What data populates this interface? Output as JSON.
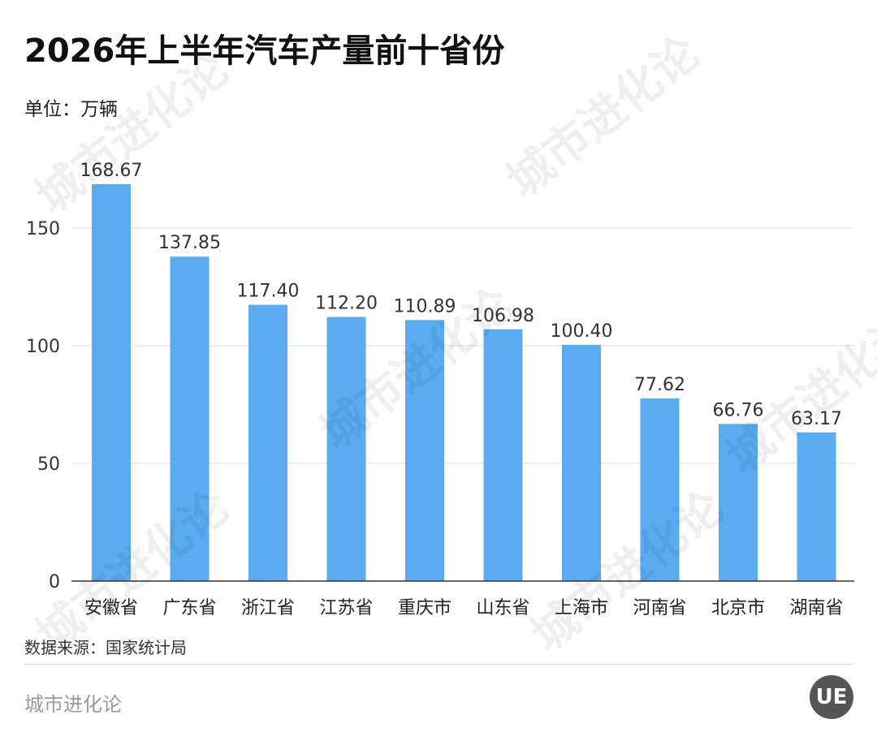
{
  "title": "2026年上半年汽车产量前十省份",
  "unit": "单位：万辆",
  "source": "数据来源：国家统计局",
  "footer_name": "城市进化论",
  "watermark": "城市进化论",
  "logo_text": "UE",
  "bar_color": "#5aabf0",
  "chart_data": {
    "type": "bar",
    "categories": [
      "安徽省",
      "广东省",
      "浙江省",
      "江苏省",
      "重庆市",
      "山东省",
      "上海市",
      "河南省",
      "北京市",
      "湖南省"
    ],
    "values": [
      168.67,
      137.85,
      117.4,
      112.2,
      110.89,
      106.98,
      100.4,
      77.62,
      66.76,
      63.17
    ],
    "value_labels": [
      "168.67",
      "137.85",
      "117.40",
      "112.20",
      "110.89",
      "106.98",
      "100.40",
      "77.62",
      "66.76",
      "63.17"
    ],
    "yticks": [
      0,
      50,
      100,
      150
    ],
    "ylim": [
      0,
      150
    ],
    "grid": true
  }
}
